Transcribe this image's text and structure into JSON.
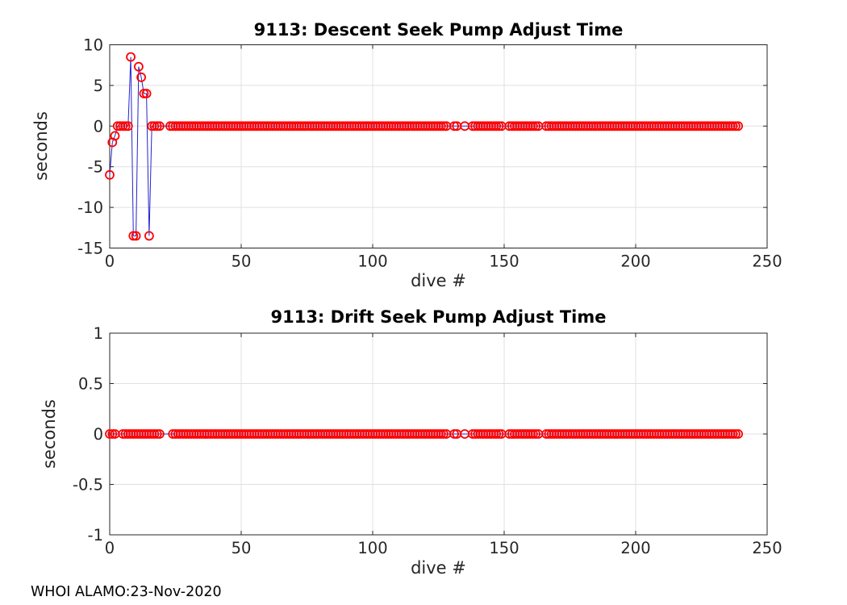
{
  "figure": {
    "footer": "WHOI ALAMO:23-Nov-2020",
    "background": "#ffffff",
    "colors": {
      "marker": "#ff0000",
      "line": "#2323cf",
      "grid": "#e0e0e0",
      "axis": "#262626",
      "tick_label": "#262626",
      "title": "#000000"
    }
  },
  "chart_data": [
    {
      "type": "line",
      "marker": "circle",
      "title": "9113: Descent Seek Pump Adjust Time",
      "xlabel": "dive #",
      "ylabel": "seconds",
      "xlim": [
        0,
        250
      ],
      "ylim": [
        -15,
        10
      ],
      "xticks": [
        0,
        50,
        100,
        150,
        200,
        250
      ],
      "yticks": [
        10,
        5,
        0,
        -5,
        -10,
        -15
      ],
      "grid": true,
      "legend": null,
      "dive_range": [
        0,
        239
      ],
      "default_value": 0,
      "nonzero_points": [
        [
          0,
          -6
        ],
        [
          1,
          -2
        ],
        [
          2,
          -1.2
        ],
        [
          8,
          8.5
        ],
        [
          9,
          -13.5
        ],
        [
          10,
          -13.5
        ],
        [
          11,
          7.3
        ],
        [
          12,
          6
        ],
        [
          13,
          4
        ],
        [
          14,
          4
        ],
        [
          15,
          -13.5
        ]
      ],
      "missing_dives": [
        20,
        21,
        22,
        129,
        130,
        133,
        134,
        136,
        137,
        150,
        151,
        164,
        165
      ]
    },
    {
      "type": "line",
      "marker": "circle",
      "title": "9113: Drift Seek Pump Adjust Time",
      "xlabel": "dive #",
      "ylabel": "seconds",
      "xlim": [
        0,
        250
      ],
      "ylim": [
        -1,
        1
      ],
      "xticks": [
        0,
        50,
        100,
        150,
        200,
        250
      ],
      "yticks": [
        1,
        0.5,
        0,
        -0.5,
        -1
      ],
      "grid": true,
      "legend": null,
      "dive_range": [
        0,
        239
      ],
      "default_value": 0,
      "nonzero_points": [],
      "missing_dives": [
        3,
        4,
        20,
        21,
        22,
        23,
        129,
        130,
        133,
        134,
        136,
        137,
        150,
        151,
        164,
        165
      ]
    }
  ]
}
